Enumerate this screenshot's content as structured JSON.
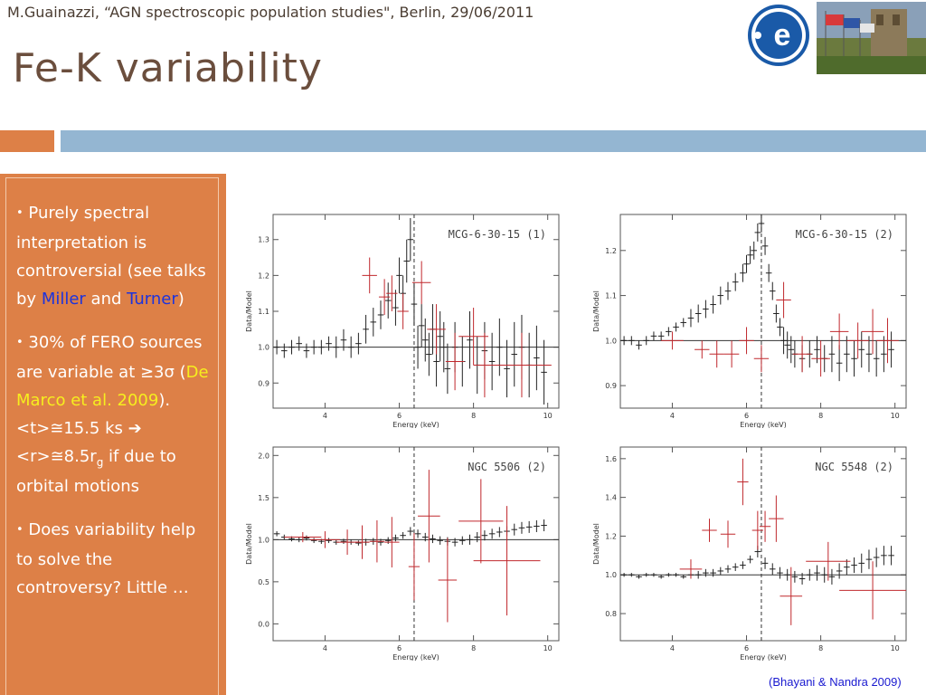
{
  "header": {
    "text": "M.Guainazzi, “AGN spectroscopic population studies\", Berlin, 29/06/2011"
  },
  "title": "Fe-K variability",
  "logo": {
    "icon": "esa-logo-icon",
    "text": "e"
  },
  "colors": {
    "accent": "#dd8047",
    "blue_bar": "#94b6d2",
    "title": "#6b4e3d",
    "highlight_blue": "#1d33dc",
    "highlight_yellow": "#f6ee1e",
    "data_black": "#222222",
    "data_red": "#c0282d"
  },
  "bullets": {
    "b1_a": "Purely spectral interpretation is controversial (see talks by ",
    "b1_miller": "Miller",
    "b1_and": " and ",
    "b1_turner": "Turner",
    "b1_end": ")",
    "b2_a": "30% of FERO sources are variable at ≥3σ (",
    "b2_ref": "De Marco et al. 2009",
    "b2_b": "). <t>≅15.5 ks ",
    "b2_arrow": "➔",
    "b2_c": " <r>≅8.5r",
    "b2_sub": "g",
    "b2_d": " if due to orbital motions",
    "b3": "Does variability help to solve the controversy? Little …"
  },
  "citation": "(Bhayani & Nandra 2009)",
  "chart_data": [
    {
      "type": "scatter",
      "title": "MCG-6-30-15 (1)",
      "xlabel": "Energy (keV)",
      "ylabel": "Data/Model",
      "xlim": [
        2.6,
        10.3
      ],
      "ylim": [
        0.83,
        1.37
      ],
      "xticks": [
        4,
        6,
        8,
        10
      ],
      "yticks": [
        0.9,
        1.0,
        1.1,
        1.2,
        1.3
      ],
      "ref_line": 1.0,
      "vline": 6.4,
      "series": [
        {
          "color": "black",
          "x": [
            2.7,
            2.9,
            3.1,
            3.3,
            3.5,
            3.7,
            3.9,
            4.1,
            4.3,
            4.5,
            4.7,
            4.9,
            5.1,
            5.3,
            5.5,
            5.7,
            5.9,
            6.0,
            6.1,
            6.2,
            6.3,
            6.4,
            6.5,
            6.6,
            6.7,
            6.8,
            6.9,
            7.0,
            7.1,
            7.2,
            7.3,
            7.5,
            7.7,
            7.9,
            8.1,
            8.3,
            8.5,
            8.7,
            8.9,
            9.1,
            9.3,
            9.5,
            9.7,
            9.9
          ],
          "y": [
            1.0,
            0.99,
            1.0,
            1.01,
            0.99,
            1.0,
            1.0,
            1.01,
            1.0,
            1.02,
            1.0,
            1.01,
            1.05,
            1.07,
            1.09,
            1.13,
            1.11,
            1.2,
            1.15,
            1.24,
            1.3,
            1.12,
            1.0,
            1.06,
            1.02,
            0.98,
            1.05,
            0.96,
            1.03,
            1.0,
            0.94,
            1.0,
            0.96,
            1.02,
            0.95,
            0.99,
            0.96,
            1.0,
            0.94,
            0.98,
            1.0,
            0.95,
            0.97,
            0.93
          ],
          "err": [
            0.02,
            0.02,
            0.02,
            0.02,
            0.02,
            0.02,
            0.02,
            0.02,
            0.03,
            0.03,
            0.03,
            0.03,
            0.04,
            0.04,
            0.04,
            0.05,
            0.05,
            0.05,
            0.05,
            0.06,
            0.06,
            0.06,
            0.06,
            0.06,
            0.06,
            0.06,
            0.07,
            0.07,
            0.07,
            0.07,
            0.07,
            0.07,
            0.07,
            0.08,
            0.08,
            0.08,
            0.08,
            0.08,
            0.08,
            0.09,
            0.09,
            0.09,
            0.09,
            0.09
          ]
        },
        {
          "color": "red",
          "x": [
            5.2,
            5.6,
            5.8,
            6.1,
            6.6,
            7.0,
            7.5,
            8.0,
            8.3,
            9.3
          ],
          "y": [
            1.2,
            1.14,
            1.15,
            1.1,
            1.18,
            1.05,
            0.96,
            1.03,
            0.95,
            0.95
          ],
          "xerr": [
            0.2,
            0.15,
            0.15,
            0.15,
            0.25,
            0.25,
            0.25,
            0.4,
            0.3,
            0.8
          ],
          "err": [
            0.05,
            0.05,
            0.05,
            0.05,
            0.06,
            0.07,
            0.08,
            0.08,
            0.09,
            0.09
          ]
        }
      ]
    },
    {
      "type": "scatter",
      "title": "MCG-6-30-15 (2)",
      "xlabel": "Energy (keV)",
      "ylabel": "Data/Model",
      "xlim": [
        2.6,
        10.3
      ],
      "ylim": [
        0.85,
        1.28
      ],
      "xticks": [
        4,
        6,
        8,
        10
      ],
      "yticks": [
        0.9,
        1.0,
        1.1,
        1.2
      ],
      "ref_line": 1.0,
      "vline": 6.4,
      "series": [
        {
          "color": "black",
          "x": [
            2.7,
            2.9,
            3.1,
            3.3,
            3.5,
            3.7,
            3.9,
            4.1,
            4.3,
            4.5,
            4.7,
            4.9,
            5.1,
            5.3,
            5.5,
            5.7,
            5.9,
            6.0,
            6.1,
            6.2,
            6.3,
            6.4,
            6.5,
            6.6,
            6.7,
            6.8,
            6.9,
            7.0,
            7.1,
            7.2,
            7.3,
            7.5,
            7.7,
            7.9,
            8.1,
            8.3,
            8.5,
            8.7,
            8.9,
            9.1,
            9.3,
            9.5,
            9.7,
            9.9
          ],
          "y": [
            1.0,
            1.0,
            0.99,
            1.0,
            1.01,
            1.01,
            1.02,
            1.03,
            1.04,
            1.05,
            1.06,
            1.07,
            1.08,
            1.1,
            1.11,
            1.13,
            1.15,
            1.17,
            1.19,
            1.2,
            1.24,
            1.26,
            1.21,
            1.15,
            1.11,
            1.06,
            1.03,
            1.0,
            0.99,
            0.98,
            0.97,
            0.96,
            0.97,
            0.98,
            0.96,
            0.97,
            0.95,
            0.97,
            0.96,
            0.98,
            0.97,
            0.96,
            0.97,
            0.98
          ],
          "err": [
            0.01,
            0.01,
            0.01,
            0.01,
            0.01,
            0.01,
            0.01,
            0.01,
            0.01,
            0.02,
            0.02,
            0.02,
            0.02,
            0.02,
            0.02,
            0.02,
            0.02,
            0.02,
            0.02,
            0.02,
            0.02,
            0.02,
            0.02,
            0.02,
            0.02,
            0.02,
            0.02,
            0.03,
            0.03,
            0.03,
            0.03,
            0.03,
            0.03,
            0.03,
            0.03,
            0.04,
            0.04,
            0.04,
            0.04,
            0.04,
            0.04,
            0.04,
            0.04,
            0.04
          ]
        },
        {
          "color": "red",
          "x": [
            4.0,
            4.8,
            5.2,
            5.6,
            6.0,
            6.4,
            7.0,
            7.5,
            8.0,
            8.5,
            9.0,
            9.4,
            9.8
          ],
          "y": [
            1.0,
            0.98,
            0.97,
            0.97,
            1.0,
            0.96,
            1.09,
            0.97,
            0.96,
            1.02,
            1.0,
            1.02,
            1.0
          ],
          "xerr": [
            0.3,
            0.2,
            0.2,
            0.2,
            0.2,
            0.2,
            0.2,
            0.25,
            0.25,
            0.25,
            0.3,
            0.3,
            0.3
          ],
          "err": [
            0.02,
            0.02,
            0.03,
            0.03,
            0.03,
            0.03,
            0.04,
            0.04,
            0.04,
            0.04,
            0.04,
            0.05,
            0.05
          ]
        }
      ]
    },
    {
      "type": "scatter",
      "title": "NGC 5506 (2)",
      "xlabel": "Energy (keV)",
      "ylabel": "Data/Model",
      "xlim": [
        2.6,
        10.3
      ],
      "ylim": [
        -0.2,
        2.1
      ],
      "xticks": [
        4,
        6,
        8,
        10
      ],
      "yticks": [
        0.0,
        0.5,
        1.0,
        1.5,
        2.0
      ],
      "ref_line": 1.0,
      "vline": 6.4,
      "series": [
        {
          "color": "black",
          "x": [
            2.7,
            2.9,
            3.1,
            3.3,
            3.5,
            3.7,
            3.9,
            4.1,
            4.3,
            4.5,
            4.7,
            4.9,
            5.1,
            5.3,
            5.5,
            5.7,
            5.9,
            6.1,
            6.3,
            6.5,
            6.7,
            6.9,
            7.1,
            7.3,
            7.5,
            7.7,
            7.9,
            8.1,
            8.3,
            8.5,
            8.7,
            8.9,
            9.1,
            9.3,
            9.5,
            9.7,
            9.9
          ],
          "y": [
            1.07,
            1.03,
            1.01,
            1.0,
            1.02,
            0.99,
            0.98,
            0.99,
            0.97,
            0.98,
            0.97,
            0.96,
            0.97,
            0.98,
            0.97,
            0.99,
            1.02,
            1.05,
            1.1,
            1.07,
            1.03,
            1.01,
            0.99,
            0.98,
            0.97,
            0.99,
            1.0,
            1.03,
            1.05,
            1.07,
            1.09,
            1.1,
            1.12,
            1.14,
            1.15,
            1.16,
            1.17
          ],
          "err": [
            0.03,
            0.03,
            0.03,
            0.03,
            0.03,
            0.03,
            0.03,
            0.03,
            0.03,
            0.03,
            0.03,
            0.03,
            0.04,
            0.04,
            0.04,
            0.04,
            0.04,
            0.04,
            0.05,
            0.05,
            0.05,
            0.05,
            0.05,
            0.05,
            0.05,
            0.05,
            0.06,
            0.06,
            0.06,
            0.06,
            0.06,
            0.06,
            0.07,
            0.07,
            0.07,
            0.07,
            0.07
          ]
        },
        {
          "color": "red",
          "x": [
            3.4,
            4.0,
            4.6,
            5.0,
            5.4,
            5.8,
            6.4,
            6.8,
            7.3,
            8.2,
            8.9
          ],
          "y": [
            1.03,
            1.0,
            0.97,
            0.97,
            0.98,
            0.97,
            0.68,
            1.28,
            0.52,
            1.22,
            0.75
          ],
          "xerr": [
            0.5,
            0.4,
            0.3,
            0.2,
            0.2,
            0.2,
            0.15,
            0.3,
            0.25,
            0.6,
            0.9
          ],
          "err": [
            0.06,
            0.1,
            0.15,
            0.2,
            0.25,
            0.3,
            0.4,
            0.55,
            0.5,
            0.5,
            0.65
          ]
        }
      ]
    },
    {
      "type": "scatter",
      "title": "NGC 5548 (2)",
      "xlabel": "Energy (keV)",
      "ylabel": "Data/Model",
      "xlim": [
        2.6,
        10.3
      ],
      "ylim": [
        0.66,
        1.66
      ],
      "xticks": [
        4,
        6,
        8,
        10
      ],
      "yticks": [
        0.8,
        1.0,
        1.2,
        1.4,
        1.6
      ],
      "ref_line": 1.0,
      "vline": 6.4,
      "series": [
        {
          "color": "black",
          "x": [
            2.7,
            2.9,
            3.1,
            3.3,
            3.5,
            3.7,
            3.9,
            4.1,
            4.3,
            4.5,
            4.7,
            4.9,
            5.1,
            5.3,
            5.5,
            5.7,
            5.9,
            6.1,
            6.3,
            6.5,
            6.7,
            6.9,
            7.1,
            7.3,
            7.5,
            7.7,
            7.9,
            8.1,
            8.3,
            8.5,
            8.7,
            8.9,
            9.1,
            9.3,
            9.5,
            9.7,
            9.9
          ],
          "y": [
            1.0,
            1.0,
            0.99,
            1.0,
            1.0,
            0.99,
            1.0,
            1.0,
            0.99,
            1.0,
            1.0,
            1.01,
            1.01,
            1.02,
            1.03,
            1.04,
            1.05,
            1.08,
            1.12,
            1.06,
            1.03,
            1.01,
            1.0,
            0.99,
            0.98,
            1.0,
            1.01,
            1.0,
            0.99,
            1.02,
            1.04,
            1.05,
            1.06,
            1.08,
            1.09,
            1.1,
            1.1
          ],
          "err": [
            0.01,
            0.01,
            0.01,
            0.01,
            0.01,
            0.01,
            0.01,
            0.01,
            0.01,
            0.01,
            0.02,
            0.02,
            0.02,
            0.02,
            0.02,
            0.02,
            0.02,
            0.02,
            0.03,
            0.03,
            0.03,
            0.03,
            0.03,
            0.03,
            0.03,
            0.03,
            0.04,
            0.04,
            0.04,
            0.04,
            0.04,
            0.04,
            0.05,
            0.05,
            0.05,
            0.05,
            0.05
          ]
        },
        {
          "color": "red",
          "x": [
            4.5,
            5.0,
            5.5,
            5.9,
            6.3,
            6.5,
            6.8,
            7.2,
            8.2,
            9.4
          ],
          "y": [
            1.03,
            1.23,
            1.21,
            1.48,
            1.23,
            1.25,
            1.29,
            0.89,
            1.07,
            0.92
          ],
          "xerr": [
            0.3,
            0.2,
            0.2,
            0.15,
            0.15,
            0.15,
            0.2,
            0.3,
            0.6,
            0.9
          ],
          "err": [
            0.05,
            0.06,
            0.07,
            0.12,
            0.1,
            0.08,
            0.12,
            0.15,
            0.1,
            0.15
          ]
        }
      ]
    }
  ]
}
